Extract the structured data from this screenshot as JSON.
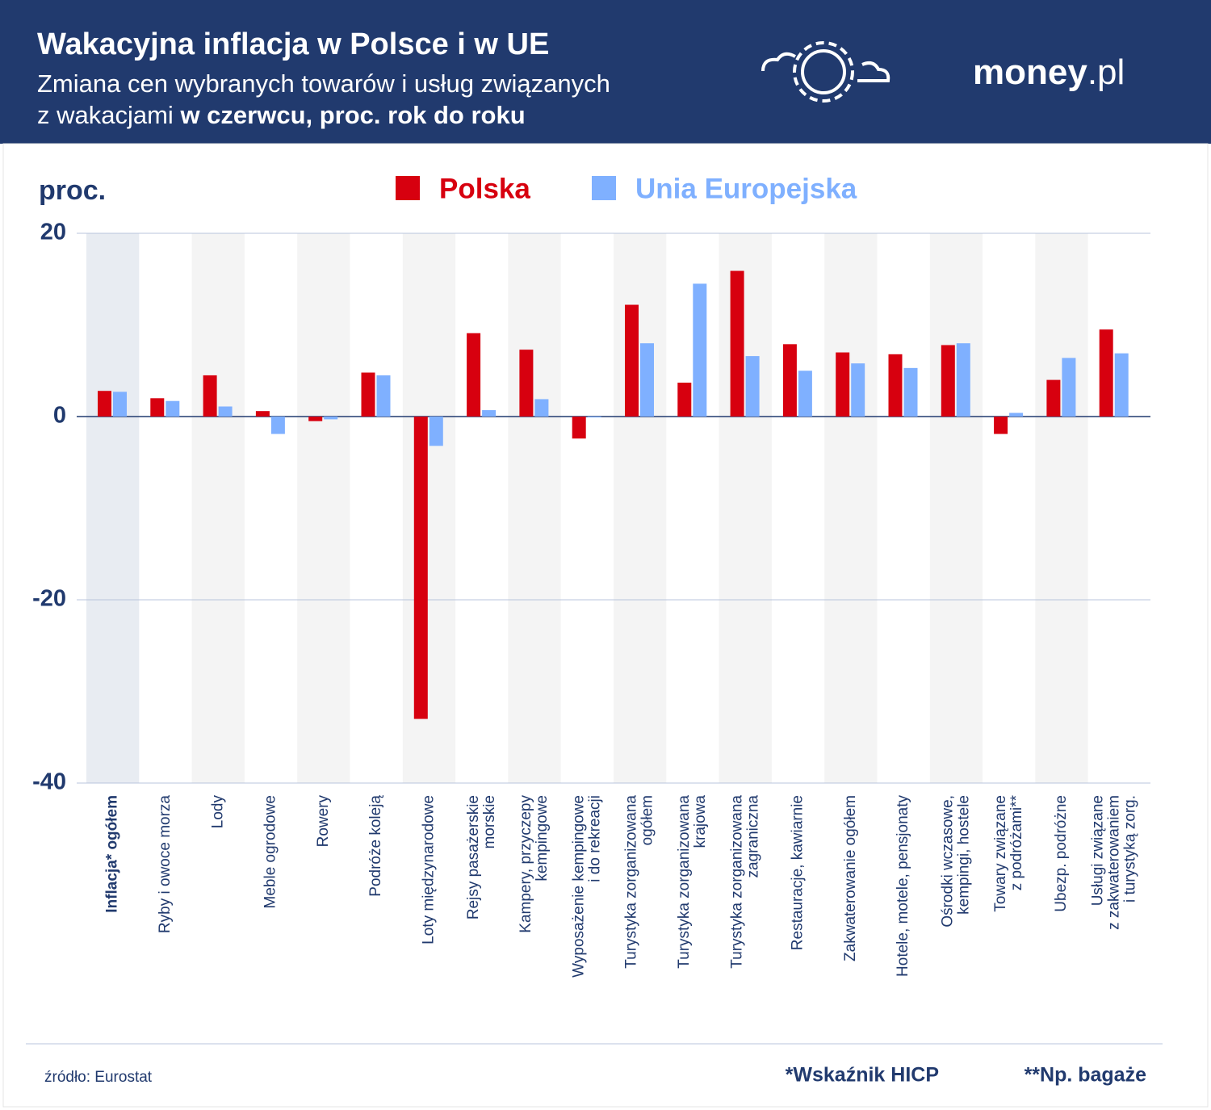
{
  "header": {
    "title": "Wakacyjna inflacja w Polsce i w UE",
    "subtitle": "Zmiana cen wybranych towarów i usług związanych",
    "subtitle_line2": "z wakacjami",
    "subtitle_bold": "w czerwcu, proc. rok do roku",
    "brand": "money",
    "brand_suffix": ".pl"
  },
  "chart_data": {
    "type": "bar",
    "y_label": "proc.",
    "categories": [
      "Inflacja* ogółem",
      "Ryby i owoce morza",
      "Lody",
      "Meble ogrodowe",
      "Rowery",
      "Podróże koleją",
      "Loty międzynarodowe",
      "Rejsy pasażerskie\nmorskie",
      "Kampery, przyczepy\nkempingowe",
      "Wyposażenie kempingowe\ni do rekreacji",
      "Turystyka zorganizowana\nogółem",
      "Turystyka zorganizowana\nkrajowa",
      "Turystyka zorganizowana\nzagraniczna",
      "Restauracje, kawiarnie",
      "Zakwaterowanie ogółem",
      "Hotele, motele, pensjonaty",
      "Ośrodki wczasowe,\nkempingi, hostele",
      "Towary związane\nz podróżami**",
      "Ubezp. podróżne",
      "Usługi związane\nz zakwaterowaniem\ni turystyką zorg."
    ],
    "series": [
      {
        "name": "Polska",
        "color": "#d7000f",
        "values": [
          2.8,
          2.0,
          4.5,
          0.6,
          -0.5,
          4.8,
          -33.0,
          9.1,
          7.3,
          -2.4,
          12.2,
          3.7,
          15.9,
          7.9,
          7.0,
          6.8,
          7.8,
          -1.9,
          4.0,
          9.5
        ]
      },
      {
        "name": "Unia Europejska",
        "color": "#7fb0ff",
        "values": [
          2.7,
          1.7,
          1.1,
          -1.9,
          -0.3,
          4.5,
          -3.2,
          0.7,
          1.9,
          -0.1,
          8.0,
          14.5,
          6.6,
          5.0,
          5.8,
          5.3,
          8.0,
          0.4,
          6.4,
          6.9
        ]
      }
    ],
    "ylim": [
      -40,
      20
    ],
    "yticks": [
      -40,
      -20,
      0,
      20
    ],
    "grid": true
  },
  "footer": {
    "source": "źródło: Eurostat",
    "note1": "*Wskaźnik HICP",
    "note2": "**Np. bagaże"
  }
}
